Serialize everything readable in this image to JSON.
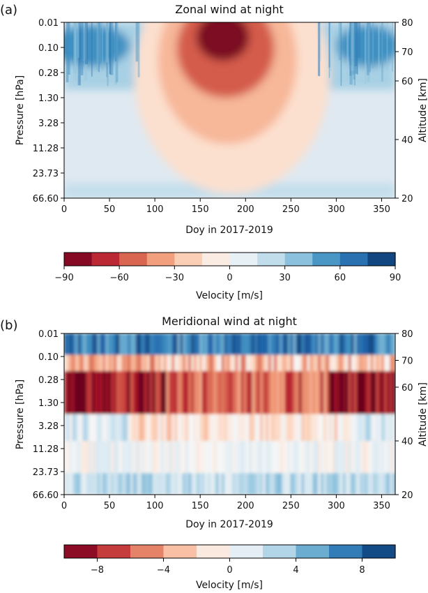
{
  "chart_data": [
    {
      "type": "heatmap",
      "panel_label": "(a)",
      "title": "Zonal wind at night",
      "xlabel": "Doy in 2017-2019",
      "ylabel": "Pressure [hPa]",
      "y2label": "Altitude [km]",
      "xlim": [
        0,
        365
      ],
      "x_ticks": [
        0,
        50,
        100,
        150,
        200,
        250,
        300,
        350
      ],
      "y_ticks": [
        "0.01",
        "0.10",
        "0.28",
        "1.30",
        "3.28",
        "11.28",
        "23.73",
        "66.60"
      ],
      "y2_ticks": [
        80,
        70,
        60,
        40,
        20
      ],
      "y2lim": [
        20,
        80
      ],
      "colorbar": {
        "label": "Velocity [m/s]",
        "range": [
          -90,
          90
        ],
        "levels": 12,
        "ticks": [
          "−90",
          "−60",
          "−30",
          "0",
          "30",
          "60",
          "90"
        ],
        "tick_values": [
          -90,
          -60,
          -30,
          0,
          30,
          60,
          90
        ]
      },
      "features": [
        {
          "description": "westward jet core",
          "center_doy": 175,
          "center_altitude_km": 72,
          "peak_value": -90
        },
        {
          "description": "eastward wind",
          "doy_range": [
            0,
            80
          ],
          "peak_value": 60
        },
        {
          "description": "eastward wind",
          "doy_range": [
            280,
            365
          ],
          "peak_value": 60
        }
      ]
    },
    {
      "type": "heatmap",
      "panel_label": "(b)",
      "title": "Meridional wind at night",
      "xlabel": "Doy in 2017-2019",
      "ylabel": "Pressure [hPa]",
      "y2label": "Altitude [km]",
      "xlim": [
        0,
        365
      ],
      "x_ticks": [
        0,
        50,
        100,
        150,
        200,
        250,
        300,
        350
      ],
      "y_ticks": [
        "0.01",
        "0.10",
        "0.28",
        "1.30",
        "3.28",
        "11.28",
        "23.73",
        "66.60"
      ],
      "y2_ticks": [
        80,
        70,
        60,
        40,
        20
      ],
      "y2lim": [
        20,
        80
      ],
      "colorbar": {
        "label": "Velocity [m/s]",
        "range": [
          -10,
          10
        ],
        "levels": 10,
        "ticks": [
          "−8",
          "−4",
          "0",
          "4",
          "8"
        ],
        "tick_values": [
          -8,
          -4,
          0,
          4,
          8
        ]
      },
      "features": [
        {
          "description": "southward band",
          "altitude_km_range": [
            50,
            68
          ],
          "peak_value": -9
        },
        {
          "description": "northward band near top",
          "altitude_km_range": [
            72,
            80
          ],
          "peak_value": 9
        }
      ]
    }
  ],
  "colors": {
    "cmap": [
      "#67001f",
      "#b2182b",
      "#d6604d",
      "#f4a582",
      "#fddbc7",
      "#f7f7f7",
      "#d1e5f0",
      "#92c5de",
      "#4393c3",
      "#2166ac",
      "#053061"
    ]
  }
}
